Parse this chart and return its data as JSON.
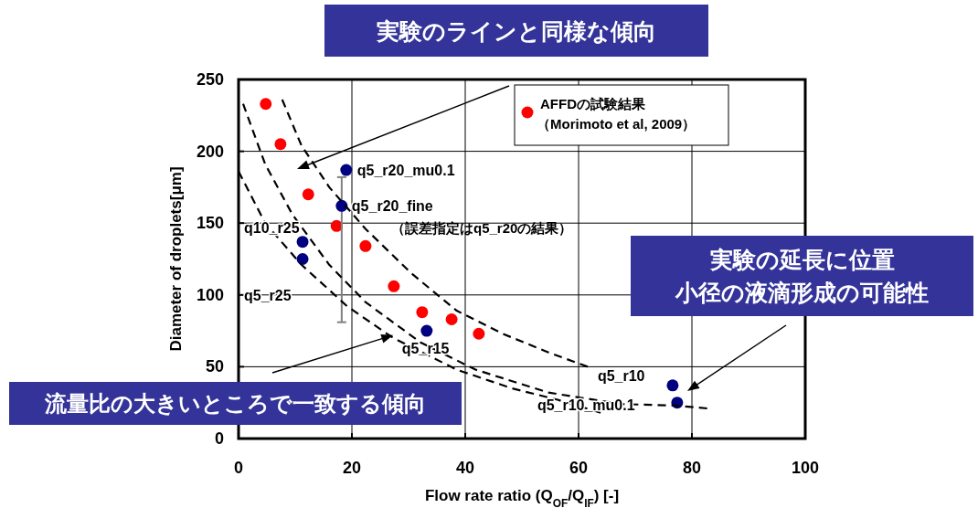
{
  "chart_data": {
    "type": "scatter",
    "xlabel": "Flow rate ratio (Q$_{OF}$/Q$_{IF}$) [-]",
    "ylabel": "Diameter of droplets[μm]",
    "xlim": [
      0,
      100
    ],
    "ylim": [
      0,
      250
    ],
    "xticks": [
      0,
      20,
      40,
      60,
      80,
      100
    ],
    "yticks": [
      0,
      50,
      100,
      150,
      200,
      250
    ],
    "grid": true,
    "legend": "top right",
    "marker": "circle",
    "series": [
      {
        "name": "AFFDの試験結果（Morimoto et al, 2009）",
        "color": "#ff0000",
        "x": [
          4.8,
          7.4,
          12.3,
          17.3,
          22.4,
          27.4,
          32.4,
          37.6,
          42.4
        ],
        "values": [
          233,
          205,
          170,
          148,
          134,
          106,
          88,
          83,
          73
        ]
      },
      {
        "color": "#000080",
        "x": [
          19.0,
          18.2,
          11.3,
          11.3,
          33.2,
          76.6,
          77.4
        ],
        "values": [
          187,
          162,
          137,
          125,
          75,
          37,
          25
        ],
        "errors": [
          null,
          [
            81,
            182
          ],
          null,
          null,
          null,
          null,
          null
        ]
      },
      {
        "type": "line",
        "color": "#000000",
        "marker": "none",
        "line_style": "dashed",
        "x": [
          7.7,
          11.1,
          16.0,
          22.4,
          30.5,
          38.5,
          46.6,
          54.7,
          61.6
        ],
        "values": [
          236,
          204,
          175,
          146,
          115,
          89,
          73,
          60,
          50
        ]
      },
      {
        "type": "line",
        "color": "#000000",
        "marker": "none",
        "line_style": "dashed",
        "x": [
          0.8,
          4.7,
          9.5,
          16.0,
          22.4,
          32.1,
          41.8,
          54.7,
          67.6,
          77,
          82.7
        ],
        "values": [
          233,
          191,
          156,
          121,
          95,
          67,
          48,
          32,
          24,
          23,
          21
        ]
      },
      {
        "type": "line",
        "color": "#000000",
        "marker": "none",
        "line_style": "dashed",
        "x": [
          0,
          4.7,
          11.1,
          19.2,
          27.3,
          38.5,
          48.2,
          56.3,
          63.9
        ],
        "values": [
          186,
          150,
          121,
          92,
          70,
          48,
          35,
          27,
          18
        ]
      }
    ],
    "annotations": [
      "実験のラインと同様な傾向",
      "実験の延長に位置小径の液滴形成の可能性",
      {
        "text": "流量比の大きいところで一致する傾向",
        "x": 27.3,
        "y": 72
      },
      "（誤差指定はq5_r20の結果）",
      {
        "text": "q5_r20_mu0.1",
        "x": 19.0,
        "y": 187
      },
      {
        "text": "q5_r20_fine",
        "x": 18.2,
        "y": 162
      },
      {
        "text": "q10_r25",
        "x": 11.3,
        "y": 137
      },
      {
        "text": "q5_r25",
        "x": 11.3,
        "y": 125
      },
      {
        "text": "q5_r15",
        "x": 33.2,
        "y": 75
      },
      {
        "text": "q5_r10",
        "x": 76.6,
        "y": 37
      },
      {
        "text": "q5_r10_mu0.1",
        "x": 77.4,
        "y": 25
      }
    ]
  }
}
